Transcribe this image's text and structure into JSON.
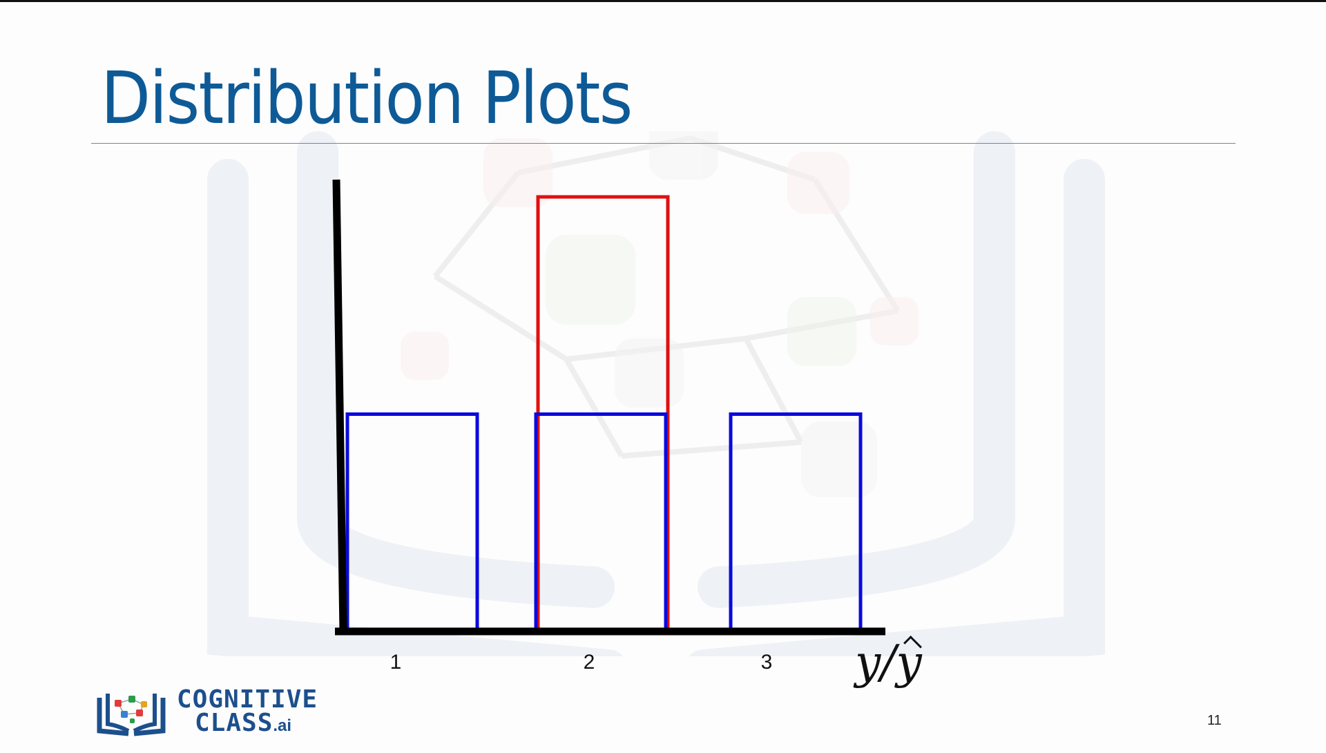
{
  "slide": {
    "title": "Distribution Plots",
    "page_number": "11"
  },
  "logo": {
    "line1": "COGNITIVE",
    "line2": "CLASS",
    "suffix": ".ai"
  },
  "chart_data": {
    "type": "bar",
    "categories": [
      "1",
      "2",
      "3"
    ],
    "series": [
      {
        "color": "#0a0adc",
        "values": [
          1,
          1,
          1
        ]
      },
      {
        "color": "#e01010",
        "values": [
          0,
          2,
          0
        ]
      }
    ],
    "xlabel": "y/ŷ",
    "ylabel": "",
    "ylim": [
      0,
      2.07
    ],
    "grid": false,
    "legend": "none"
  }
}
